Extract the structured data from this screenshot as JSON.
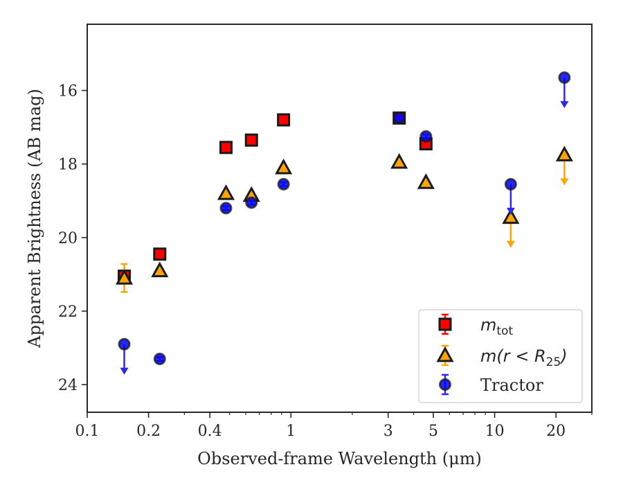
{
  "chart_data": {
    "type": "scatter",
    "title": "",
    "xlabel": "Observed-frame Wavelength (μm)",
    "ylabel": "Apparent Brightness (AB mag)",
    "xscale": "log",
    "xlim": [
      0.1,
      30
    ],
    "ylim": [
      24.75,
      14.2
    ],
    "y_inverted": true,
    "grid": false,
    "legend_position": "lower-right",
    "x_ticks": [
      {
        "value": 0.1,
        "label": "0.1"
      },
      {
        "value": 0.2,
        "label": "0.2"
      },
      {
        "value": 0.4,
        "label": "0.4"
      },
      {
        "value": 1,
        "label": "1"
      },
      {
        "value": 3,
        "label": "3"
      },
      {
        "value": 5,
        "label": "5"
      },
      {
        "value": 10,
        "label": "10"
      },
      {
        "value": 20,
        "label": "20"
      }
    ],
    "y_ticks": [
      {
        "value": 16,
        "label": "16"
      },
      {
        "value": 18,
        "label": "18"
      },
      {
        "value": 20,
        "label": "20"
      },
      {
        "value": 22,
        "label": "22"
      },
      {
        "value": 24,
        "label": "24"
      }
    ],
    "series": [
      {
        "name": "m_tot",
        "legend_main": "m",
        "legend_sub": "tot",
        "marker": "square",
        "color": "#ff0000",
        "edge_color": "#1a1a1a",
        "points": [
          {
            "x": 0.152,
            "y": 21.05,
            "err": 0.15,
            "upper_limit": false
          },
          {
            "x": 0.227,
            "y": 20.45,
            "err": 0.05,
            "upper_limit": false
          },
          {
            "x": 0.48,
            "y": 17.55,
            "err": 0.05,
            "upper_limit": false
          },
          {
            "x": 0.64,
            "y": 17.35,
            "err": 0.05,
            "upper_limit": false
          },
          {
            "x": 0.92,
            "y": 16.8,
            "err": 0.05,
            "upper_limit": false
          },
          {
            "x": 3.4,
            "y": 16.75,
            "err": 0.05,
            "upper_limit": false
          },
          {
            "x": 4.6,
            "y": 17.45,
            "err": 0.05,
            "upper_limit": false
          }
        ]
      },
      {
        "name": "m(r < R_25)",
        "legend_main": "m(r < R",
        "legend_sub": "25",
        "legend_close": ")",
        "marker": "triangle",
        "color": "#ffa500",
        "edge_color": "#1a1a1a",
        "points": [
          {
            "x": 0.152,
            "y": 21.1,
            "err": 0.38,
            "upper_limit": false
          },
          {
            "x": 0.227,
            "y": 20.9,
            "err": 0.05,
            "upper_limit": false
          },
          {
            "x": 0.48,
            "y": 18.8,
            "err": 0.05,
            "upper_limit": false
          },
          {
            "x": 0.64,
            "y": 18.85,
            "err": 0.05,
            "upper_limit": false
          },
          {
            "x": 0.92,
            "y": 18.1,
            "err": 0.05,
            "upper_limit": false
          },
          {
            "x": 3.4,
            "y": 17.95,
            "err": 0.05,
            "upper_limit": false
          },
          {
            "x": 4.6,
            "y": 18.5,
            "err": 0.05,
            "upper_limit": false
          },
          {
            "x": 12.0,
            "y": 19.45,
            "err": 0,
            "upper_limit": true
          },
          {
            "x": 22.0,
            "y": 17.75,
            "err": 0,
            "upper_limit": true
          }
        ]
      },
      {
        "name": "Tractor",
        "legend_main": "Tractor",
        "marker": "circle",
        "color": "#0000ff",
        "edge_color": "#1a1a1a",
        "points": [
          {
            "x": 0.152,
            "y": 22.9,
            "err": 0,
            "upper_limit": true
          },
          {
            "x": 0.227,
            "y": 23.3,
            "err": 0.05,
            "upper_limit": false
          },
          {
            "x": 0.48,
            "y": 19.2,
            "err": 0.05,
            "upper_limit": false
          },
          {
            "x": 0.64,
            "y": 19.05,
            "err": 0.05,
            "upper_limit": false
          },
          {
            "x": 0.92,
            "y": 18.55,
            "err": 0.05,
            "upper_limit": false
          },
          {
            "x": 3.4,
            "y": 16.75,
            "err": 0.05,
            "upper_limit": false
          },
          {
            "x": 4.6,
            "y": 17.25,
            "err": 0.05,
            "upper_limit": false
          },
          {
            "x": 12.0,
            "y": 18.55,
            "err": 0,
            "upper_limit": true
          },
          {
            "x": 22.0,
            "y": 15.65,
            "err": 0,
            "upper_limit": true
          }
        ]
      }
    ]
  }
}
